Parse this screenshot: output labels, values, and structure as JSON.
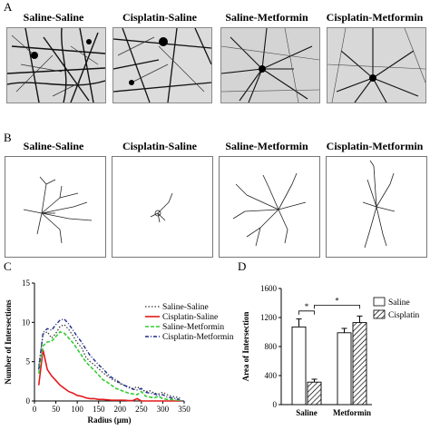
{
  "panels": {
    "A": {
      "letter": "A"
    },
    "B": {
      "letter": "B"
    },
    "C": {
      "letter": "C"
    },
    "D": {
      "letter": "D"
    }
  },
  "groups": [
    "Saline-Saline",
    "Cisplatin-Saline",
    "Saline-Metformin",
    "Cisplatin-Metformin"
  ],
  "colors": {
    "saline_saline": "#333333",
    "cisplatin_saline": "#e31a1c",
    "saline_metformin": "#33cc33",
    "cisplatin_metformin": "#1f2a8a"
  },
  "chart_data": [
    {
      "type": "line",
      "panel": "C",
      "xlabel": "Radius (µm)",
      "ylabel": "Number of Intersections",
      "xlim": [
        0,
        350
      ],
      "ylim": [
        0,
        15
      ],
      "xticks": [
        0,
        50,
        100,
        150,
        200,
        250,
        300,
        350
      ],
      "yticks": [
        0,
        5,
        10,
        15
      ],
      "legend_position": "right",
      "x": [
        10,
        20,
        30,
        40,
        50,
        60,
        70,
        80,
        90,
        100,
        110,
        120,
        130,
        140,
        150,
        160,
        170,
        180,
        190,
        200,
        210,
        220,
        230,
        240,
        250,
        260,
        270,
        280,
        290,
        300,
        310,
        320,
        330,
        340
      ],
      "series": [
        {
          "name": "Saline-Saline",
          "style": "dotted",
          "values": [
            4.5,
            8.5,
            8.8,
            8.0,
            8.6,
            9.5,
            9.7,
            9.1,
            8.3,
            7.4,
            6.8,
            5.6,
            5.0,
            4.6,
            4.1,
            3.6,
            3.2,
            2.8,
            2.5,
            2.2,
            2.0,
            1.8,
            1.6,
            1.8,
            1.5,
            1.2,
            1.3,
            1.0,
            0.9,
            1.1,
            0.8,
            0.6,
            0.5,
            0.4
          ]
        },
        {
          "name": "Cisplatin-Saline",
          "style": "solid",
          "values": [
            2.0,
            6.5,
            4.0,
            3.2,
            2.6,
            2.0,
            1.6,
            1.2,
            1.0,
            0.7,
            0.6,
            0.4,
            0.3,
            0.3,
            0.2,
            0.2,
            0.15,
            0.1,
            0.1,
            0.1,
            0.1,
            0.05,
            0.05,
            0.3,
            0.0,
            0.0,
            0.0,
            0.0,
            0.0,
            0.0,
            0.0,
            0.0,
            0.0,
            0.0
          ]
        },
        {
          "name": "Saline-Metformin",
          "style": "dashed",
          "values": [
            3.5,
            7.0,
            7.5,
            7.6,
            8.2,
            8.8,
            8.6,
            8.0,
            7.4,
            6.6,
            5.8,
            5.0,
            4.4,
            3.9,
            3.3,
            2.7,
            2.4,
            2.0,
            1.6,
            1.4,
            1.2,
            1.0,
            0.9,
            0.8,
            1.2,
            0.6,
            0.5,
            0.4,
            0.6,
            0.3,
            0.2,
            0.2,
            0.1,
            0.1
          ]
        },
        {
          "name": "Cisplatin-Metformin",
          "style": "dashdot",
          "values": [
            4.0,
            8.7,
            9.2,
            9.0,
            9.7,
            10.3,
            10.4,
            9.8,
            9.0,
            8.2,
            7.5,
            6.6,
            5.8,
            5.2,
            4.6,
            4.1,
            3.5,
            3.0,
            2.7,
            2.3,
            2.0,
            1.7,
            1.5,
            1.4,
            1.6,
            1.1,
            1.0,
            0.9,
            0.7,
            0.8,
            0.5,
            0.4,
            0.3,
            0.2
          ]
        }
      ]
    },
    {
      "type": "bar",
      "panel": "D",
      "ylabel": "Area of Intersection",
      "ylim": [
        0,
        1600
      ],
      "yticks": [
        0,
        400,
        800,
        1200,
        1600
      ],
      "categories": [
        "Saline",
        "Metformin"
      ],
      "legend_position": "top-right",
      "series": [
        {
          "name": "Saline",
          "fill": "open",
          "values": [
            1070,
            990
          ],
          "errors": [
            110,
            60
          ]
        },
        {
          "name": "Cisplatin",
          "fill": "hatched",
          "values": [
            310,
            1130
          ],
          "errors": [
            40,
            90
          ]
        }
      ],
      "annotations": [
        "*",
        "*"
      ]
    }
  ]
}
